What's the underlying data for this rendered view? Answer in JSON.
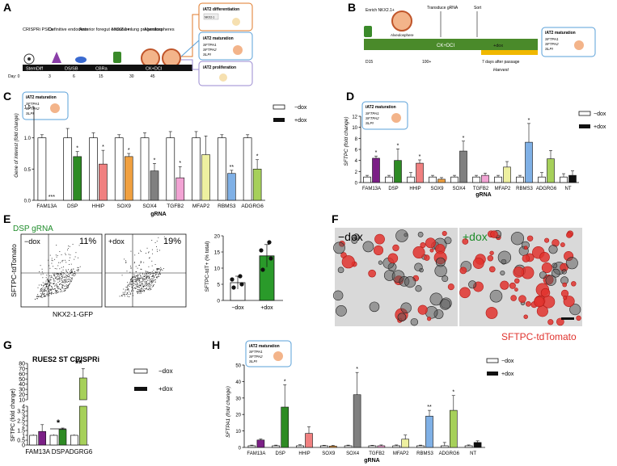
{
  "colors": {
    "purple": "#7b1f86",
    "green": "#2e8b24",
    "red": "#f08080",
    "orange": "#f0a040",
    "grey": "#808080",
    "pink": "#f2a3d4",
    "yellow": "#eef0a0",
    "blue": "#7fb0e6",
    "lime": "#a6d05a",
    "black": "#111111",
    "tdtomato": "#e0332e",
    "dsp_green": "#1e8c2a",
    "bar_green": "#2a9a2a"
  },
  "panelA": {
    "letter": "A",
    "stages": [
      "CRISPRi PSCs",
      "Definitive endoderm",
      "Anterior foregut endoderm",
      "NKX2.1+ lung progenitors",
      "Alveolospheres"
    ],
    "timeline": [
      "StemDiff",
      "DS/SB",
      "CBRa",
      "CK+DCI"
    ],
    "days": [
      "Day: 0",
      "3",
      "6",
      "15",
      "30",
      "45"
    ],
    "outcomes": [
      {
        "title": "iAT2 differentiation",
        "label": "NKX2-1"
      },
      {
        "title": "iAT2 maturation",
        "genes": [
          "SFTPA1",
          "SFTPA2",
          "SLPI"
        ]
      },
      {
        "title": "iAT2 proliferation"
      }
    ]
  },
  "panelB": {
    "letter": "B",
    "enrich": "Enrich NKX2.1+",
    "transduce": "Transduce gRNA",
    "sort": "Sort",
    "bar_label": "CK+DCI",
    "dox_label": "+dox",
    "alveolosphere": "Alveolosphere",
    "ticks": [
      "D15",
      "100+",
      "7 days after passage"
    ],
    "harvest": "Harvest",
    "box_title": "iAT2 maturation",
    "box_genes": [
      "SFTPA1",
      "SFTPA2",
      "SLPI"
    ]
  },
  "chart_data": [
    {
      "panel": "C",
      "type": "bar",
      "title": "iAT2 maturation",
      "box_genes": [
        "SFTPA1",
        "SFTPA2",
        "SLPI"
      ],
      "ylabel": "Gene of interest (fold change)",
      "xlabel": "gRNA",
      "ylim": [
        0,
        1.5
      ],
      "yticks": [
        "0.0",
        "0.5",
        "1.0",
        "1.5"
      ],
      "categories": [
        "FAM13A",
        "DSP",
        "HHIP",
        "SOX9",
        "SOX4",
        "TGFB2",
        "MFAP2",
        "RBMS3",
        "ADGRG6"
      ],
      "series": [
        {
          "name": "−dox",
          "values": [
            1.0,
            1.0,
            1.0,
            1.0,
            1.0,
            1.0,
            1.0,
            1.0,
            1.0
          ],
          "err": [
            0.05,
            0.15,
            0.08,
            0.05,
            0.08,
            0.1,
            0.1,
            0.05,
            0.05
          ]
        },
        {
          "name": "+dox",
          "values": [
            0.0,
            0.7,
            0.58,
            0.7,
            0.47,
            0.36,
            0.73,
            0.43,
            0.5
          ],
          "err": [
            0,
            0.08,
            0.22,
            0.05,
            0.12,
            0.18,
            0.3,
            0.05,
            0.15
          ]
        }
      ],
      "sig": [
        "***",
        "*",
        "*",
        "*",
        "*",
        "*",
        "",
        "**",
        "*"
      ],
      "legend": [
        "−dox",
        "+dox"
      ]
    },
    {
      "panel": "D",
      "type": "bar",
      "title": "iAT2 maturation",
      "box_genes": [
        "SFTPA1",
        "SFTPA2",
        "SLPI"
      ],
      "ylabel": "SFTPC (fold change)",
      "xlabel": "gRNA",
      "ylim": [
        0,
        12
      ],
      "yticks": [
        "0",
        "2",
        "4",
        "6",
        "8",
        "10",
        "12"
      ],
      "categories": [
        "FAM13A",
        "DSP",
        "HHIP",
        "SOX9",
        "SOX4",
        "TGFB2",
        "MFAP2",
        "RBMS3",
        "ADGRG6",
        "NT"
      ],
      "series": [
        {
          "name": "−dox",
          "values": [
            1.0,
            1.0,
            1.0,
            1.0,
            1.0,
            1.0,
            1.0,
            1.0,
            1.0,
            1.0
          ],
          "err": [
            0.3,
            0.3,
            0.8,
            0.3,
            0.3,
            0.3,
            0.3,
            0.3,
            0.8,
            0.6
          ]
        },
        {
          "name": "+dox",
          "values": [
            4.4,
            4.0,
            3.5,
            0.6,
            5.7,
            1.3,
            2.8,
            7.3,
            4.3,
            1.3
          ],
          "err": [
            0.4,
            2.1,
            0.6,
            0.3,
            1.8,
            0.4,
            1.0,
            3.4,
            1.5,
            0.8
          ]
        }
      ],
      "sig": [
        "*",
        "*",
        "*",
        "",
        "*",
        "",
        "",
        "*",
        "",
        ""
      ],
      "legend": [
        "−dox",
        "+dox"
      ]
    },
    {
      "panel": "E",
      "type": "bar",
      "gating": "DSP gRNA",
      "quadrants": [
        {
          "label": "−dox",
          "pct": "11%"
        },
        {
          "label": "+dox",
          "pct": "19%"
        }
      ],
      "flow_ylabel": "SFTPC-tdTomato",
      "flow_xlabel": "NKX2-1-GFP",
      "ylabel": "SFTPC-tdT+ (% total)",
      "ylim": [
        0,
        20
      ],
      "yticks": [
        "0",
        "5",
        "10",
        "15",
        "20"
      ],
      "categories": [
        "−dox",
        "+dox"
      ],
      "values": [
        5.5,
        13.8
      ],
      "err": [
        2.0,
        3.5
      ],
      "points": [
        [
          4.0,
          5.0,
          6.5,
          7.5
        ],
        [
          9.5,
          13.0,
          15.5,
          18.0
        ]
      ]
    },
    {
      "panel": "G",
      "type": "bar",
      "title": "RUES2 ST CRISPRi",
      "ylabel": "SFTPC (fold change)",
      "yticks_low": [
        "0",
        "0.5",
        "1",
        "1.5",
        "2",
        "2.5",
        "3",
        "3.5",
        "4"
      ],
      "yticks_high": [
        "10",
        "20",
        "30",
        "40",
        "50",
        "60",
        "70",
        "80"
      ],
      "categories": [
        "FAM13A",
        "DSP",
        "ADGRG6"
      ],
      "series": [
        {
          "name": "−dox",
          "values": [
            1.0,
            1.0,
            1.0
          ],
          "err": [
            0.1,
            0.1,
            0.1
          ]
        },
        {
          "name": "+dox",
          "values": [
            1.4,
            1.6,
            52
          ],
          "err": [
            0.7,
            0.15,
            18
          ]
        }
      ],
      "sig": [
        "",
        "*",
        "**"
      ],
      "legend": [
        "−dox",
        "+dox"
      ]
    },
    {
      "panel": "H",
      "type": "bar",
      "title": "iAT2 maturation",
      "box_genes": [
        "SFTPA1",
        "SFTPA2",
        "SLPI"
      ],
      "ylabel": "SFTPA1 (fold change)",
      "xlabel": "gRNA",
      "ylim": [
        0,
        50
      ],
      "yticks": [
        "0",
        "10",
        "20",
        "30",
        "40",
        "50"
      ],
      "categories": [
        "FAM13A",
        "DSP",
        "HHIP",
        "SOX9",
        "SOX4",
        "TGFB2",
        "MFAP2",
        "RBMS3",
        "ADGRG6",
        "NT"
      ],
      "series": [
        {
          "name": "−dox",
          "values": [
            1,
            1,
            1,
            1,
            1,
            1,
            1,
            1,
            1,
            1
          ],
          "err": [
            0.4,
            0.4,
            0.6,
            0.3,
            0.4,
            0.3,
            0.5,
            0.4,
            2.0,
            0.5
          ]
        },
        {
          "name": "+dox",
          "values": [
            4.5,
            24.5,
            8.5,
            0.8,
            32,
            1.0,
            5.0,
            19,
            22.5,
            3.0
          ],
          "err": [
            0.6,
            13.5,
            4.0,
            0.4,
            13.5,
            0.5,
            2.5,
            3.5,
            9.0,
            1.0
          ]
        }
      ],
      "sig": [
        "",
        "*",
        "",
        "",
        "*",
        "",
        "",
        "**",
        "*",
        ""
      ],
      "legend": [
        "−dox",
        "+dox"
      ]
    }
  ],
  "panelF": {
    "letter": "F",
    "left_label": "−dox",
    "right_label": "+dox",
    "caption": "SFTPC-tdTomato"
  },
  "letters": {
    "C": "C",
    "D": "D",
    "E": "E",
    "G": "G",
    "H": "H"
  }
}
